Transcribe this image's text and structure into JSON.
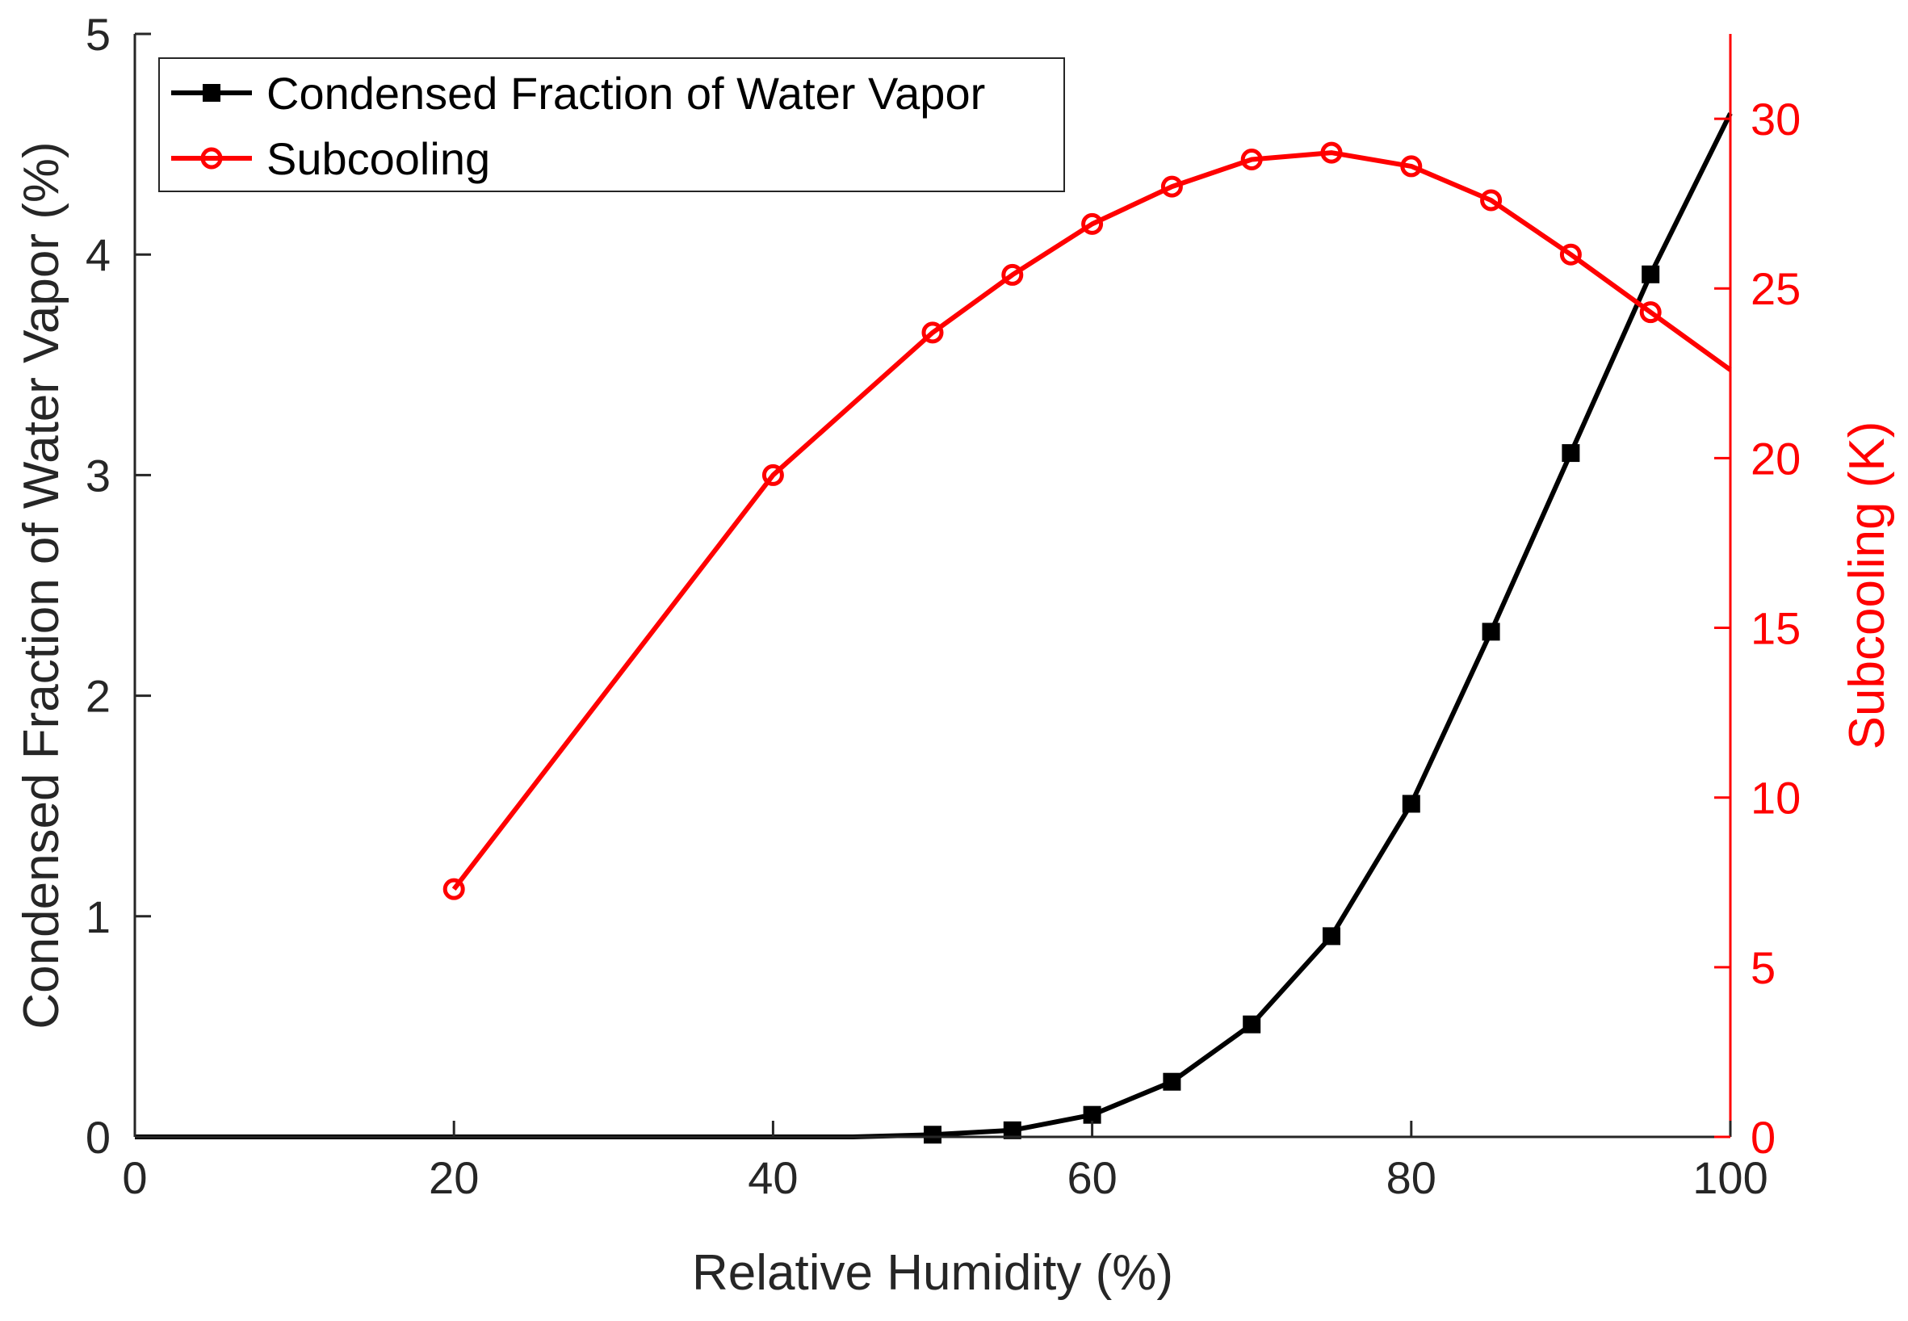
{
  "chart_data": {
    "type": "line",
    "xlabel": "Relative Humidity (%)",
    "ylabel_left": "Condensed Fraction of Water Vapor (%)",
    "ylabel_right": "Subcooling (K)",
    "xlim": [
      0,
      100
    ],
    "ylim_left": [
      0,
      5
    ],
    "ylim_right": [
      0,
      32.5
    ],
    "x_ticks": [
      0,
      20,
      40,
      60,
      80,
      100
    ],
    "y_left_ticks": [
      0,
      1,
      2,
      3,
      4,
      5
    ],
    "y_right_ticks": [
      0,
      5,
      10,
      15,
      20,
      25,
      30
    ],
    "grid": false,
    "legend_position": "top-left",
    "series": [
      {
        "name": "Condensed Fraction of Water Vapor",
        "axis": "left",
        "color": "#000000",
        "marker": "square",
        "line_x": [
          0,
          20,
          40,
          45,
          50,
          55,
          60,
          65,
          70,
          75,
          80,
          85,
          90,
          95,
          100
        ],
        "line_y": [
          0,
          0,
          0,
          0,
          0.01,
          0.03,
          0.1,
          0.25,
          0.51,
          0.91,
          1.51,
          2.29,
          3.1,
          3.91,
          4.64
        ],
        "marker_x": [
          50,
          55,
          60,
          65,
          70,
          75,
          80,
          85,
          90,
          95
        ],
        "marker_y": [
          0.01,
          0.03,
          0.1,
          0.25,
          0.51,
          0.91,
          1.51,
          2.29,
          3.1,
          3.91
        ]
      },
      {
        "name": "Subcooling",
        "axis": "right",
        "color": "#ff0000",
        "marker": "circle",
        "line_x": [
          20,
          40,
          50,
          55,
          60,
          65,
          70,
          75,
          80,
          85,
          90,
          95,
          100
        ],
        "line_y": [
          7.3,
          19.5,
          23.7,
          25.4,
          26.9,
          28.0,
          28.8,
          29.0,
          28.6,
          27.6,
          26.0,
          24.3,
          22.6
        ],
        "marker_x": [
          20,
          40,
          50,
          55,
          60,
          65,
          70,
          75,
          80,
          85,
          90,
          95
        ],
        "marker_y": [
          7.3,
          19.5,
          23.7,
          25.4,
          26.9,
          28.0,
          28.8,
          29.0,
          28.6,
          27.6,
          26.0,
          24.3
        ]
      }
    ]
  }
}
